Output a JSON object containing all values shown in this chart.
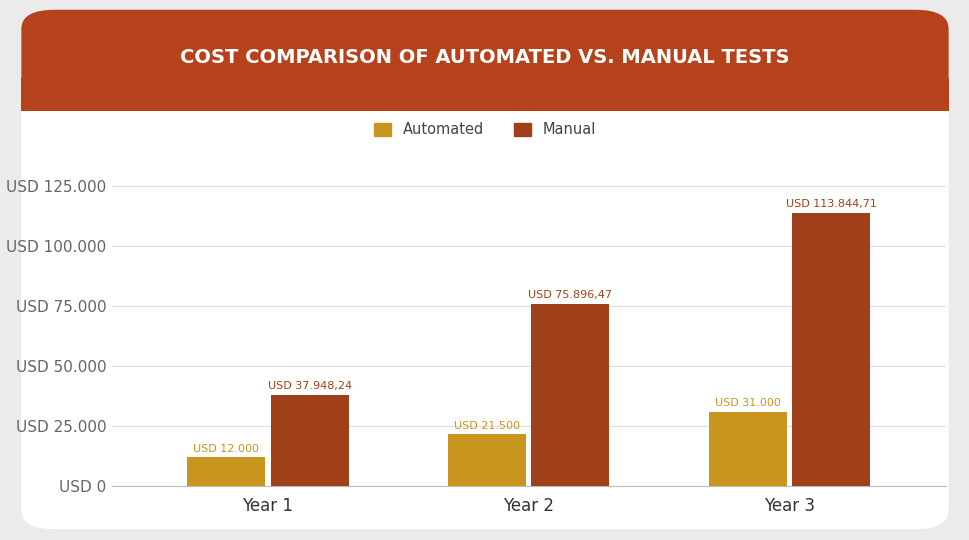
{
  "title": "COST COMPARISON OF AUTOMATED VS. MANUAL TESTS",
  "title_bg_color": "#b5421a",
  "title_text_color": "#ffffff",
  "chart_bg_color": "#ffffff",
  "outer_bg_color": "#ebebeb",
  "categories": [
    "Year 1",
    "Year 2",
    "Year 3"
  ],
  "automated_values": [
    12000,
    21500,
    31000
  ],
  "manual_values": [
    37948.24,
    75896.47,
    113844.71
  ],
  "automated_labels": [
    "USD 12.000",
    "USD 21.500",
    "USD 31.000"
  ],
  "manual_labels": [
    "USD 37.948,24",
    "USD 75.896,47",
    "USD 113.844,71"
  ],
  "automated_color": "#c8961e",
  "manual_color": "#a0401a",
  "legend_automated": "Automated",
  "legend_manual": "Manual",
  "ytick_labels": [
    "USD 0",
    "USD 25.000",
    "USD 50.000",
    "USD 75.000",
    "USD 100.000",
    "USD 125.000"
  ],
  "ytick_values": [
    0,
    25000,
    50000,
    75000,
    100000,
    125000
  ],
  "ylim": [
    0,
    135000
  ],
  "bar_width": 0.3,
  "label_fontsize": 8.0,
  "axis_label_fontsize": 11,
  "legend_fontsize": 10.5,
  "title_fontsize": 14
}
